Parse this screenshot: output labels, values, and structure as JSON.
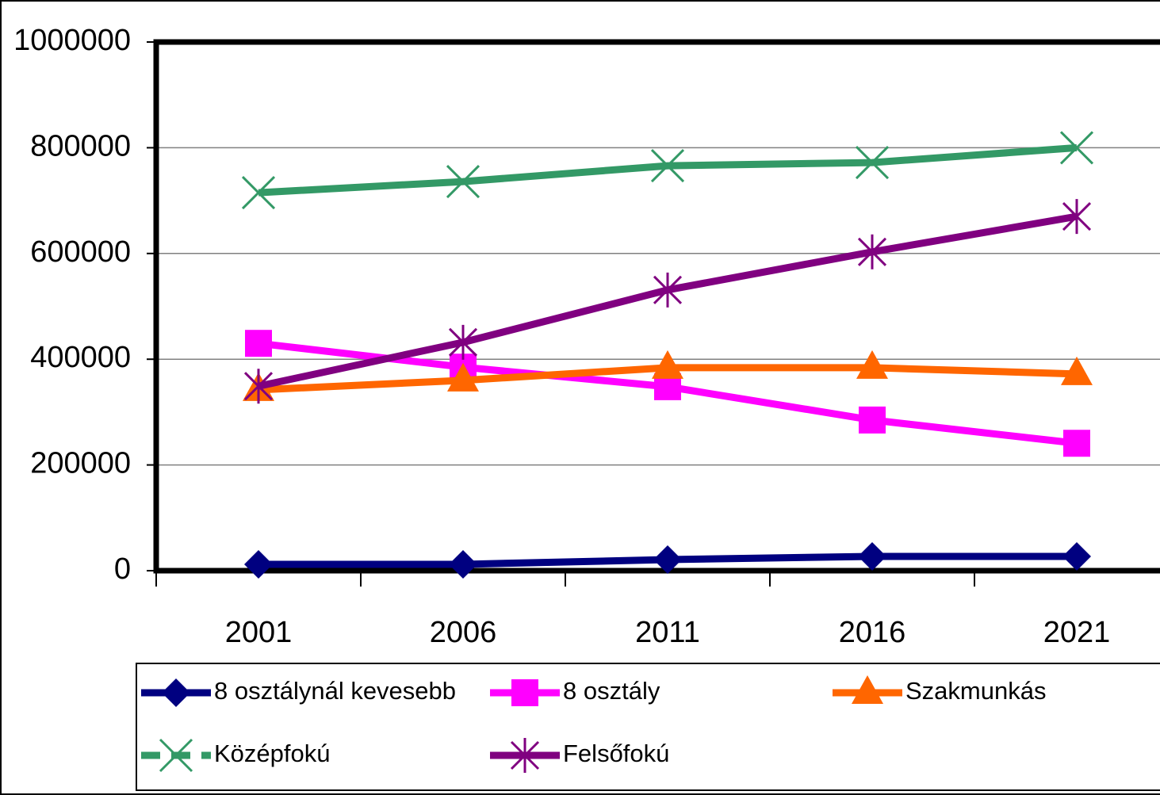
{
  "chart_data": {
    "type": "line",
    "categories": [
      "2001",
      "2006",
      "2011",
      "2016",
      "2021"
    ],
    "series": [
      {
        "name": "8 osztálynál kevesebb",
        "color": "#000080",
        "marker": "diamond",
        "values": [
          12000,
          12000,
          21000,
          27000,
          27000
        ]
      },
      {
        "name": "8 osztály",
        "color": "#ff00ff",
        "marker": "square",
        "values": [
          430000,
          385000,
          348000,
          285000,
          241000
        ]
      },
      {
        "name": "Szakmunkás",
        "color": "#ff6600",
        "marker": "triangle",
        "values": [
          342000,
          360000,
          384000,
          384000,
          372000
        ]
      },
      {
        "name": "Középfokú",
        "color": "#339966",
        "marker": "x",
        "values": [
          715000,
          736000,
          766000,
          772000,
          800000
        ]
      },
      {
        "name": "Felsőfokú",
        "color": "#800080",
        "marker": "star",
        "values": [
          349000,
          432000,
          531000,
          603000,
          670000
        ]
      }
    ],
    "ylim": [
      0,
      1000000
    ],
    "yticks": [
      0,
      200000,
      400000,
      600000,
      800000,
      1000000
    ],
    "grid": true
  }
}
